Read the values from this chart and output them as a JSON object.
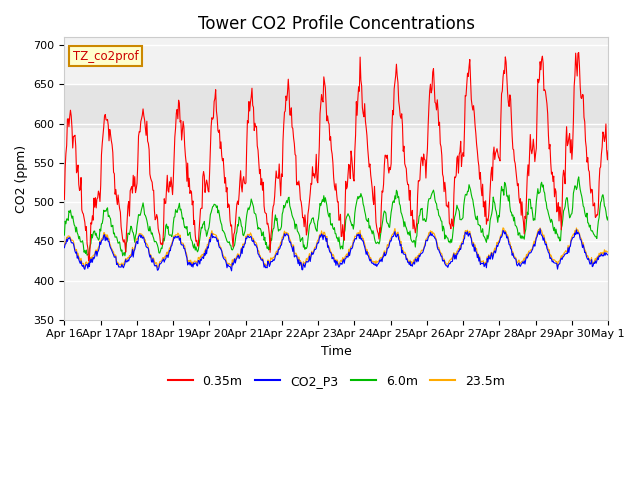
{
  "title": "Tower CO2 Profile Concentrations",
  "xlabel": "Time",
  "ylabel": "CO2 (ppm)",
  "ylim": [
    350,
    710
  ],
  "yticks": [
    350,
    400,
    450,
    500,
    550,
    600,
    650,
    700
  ],
  "xlim_days": [
    0,
    15
  ],
  "tick_labels": [
    "Apr 16",
    "Apr 17",
    "Apr 18",
    "Apr 19",
    "Apr 20",
    "Apr 21",
    "Apr 22",
    "Apr 23",
    "Apr 24",
    "Apr 25",
    "Apr 26",
    "Apr 27",
    "Apr 28",
    "Apr 29",
    "Apr 30",
    "May 1"
  ],
  "legend_labels": [
    "0.35m",
    "CO2_P3",
    "6.0m",
    "23.5m"
  ],
  "legend_colors": [
    "#ff0000",
    "#0000ff",
    "#00bb00",
    "#ffaa00"
  ],
  "annotation_text": "TZ_co2prof",
  "background_color": "#ffffff",
  "plot_bg_color": "#f2f2f2",
  "grid_color": "#ffffff",
  "shaded_band_lo": 595,
  "shaded_band_hi": 650,
  "title_fontsize": 12,
  "label_fontsize": 9,
  "tick_fontsize": 8
}
